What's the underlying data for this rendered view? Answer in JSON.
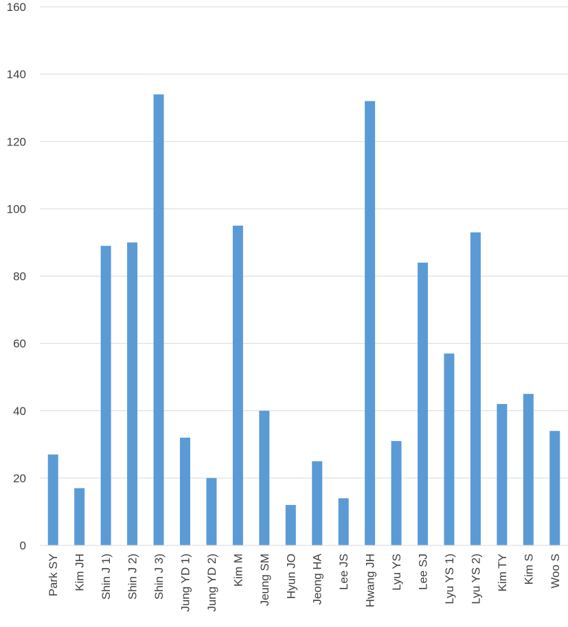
{
  "chart_data": {
    "type": "bar",
    "title": "",
    "xlabel": "",
    "ylabel": "",
    "ylim": [
      0,
      160
    ],
    "yticks": [
      0,
      20,
      40,
      60,
      80,
      100,
      120,
      140,
      160
    ],
    "grid": true,
    "legend": "none",
    "bar_color": "#5b9bd5",
    "categories": [
      "Park SY",
      "Kim JH",
      "Shin J 1)",
      "Shin J 2)",
      "Shin J 3)",
      "Jung YD 1)",
      "Jung YD 2)",
      "Kim M",
      "Jeung SM",
      "Hyun JO",
      "Jeong HA",
      "Lee JS",
      "Hwang JH",
      "Lyu YS",
      "Lee SJ",
      "Lyu YS 1)",
      "Lyu YS 2)",
      "Kim TY",
      "Kim S",
      "Woo S"
    ],
    "values": [
      27,
      17,
      89,
      90,
      134,
      32,
      20,
      95,
      40,
      12,
      25,
      14,
      132,
      31,
      84,
      57,
      93,
      42,
      45,
      34
    ]
  }
}
